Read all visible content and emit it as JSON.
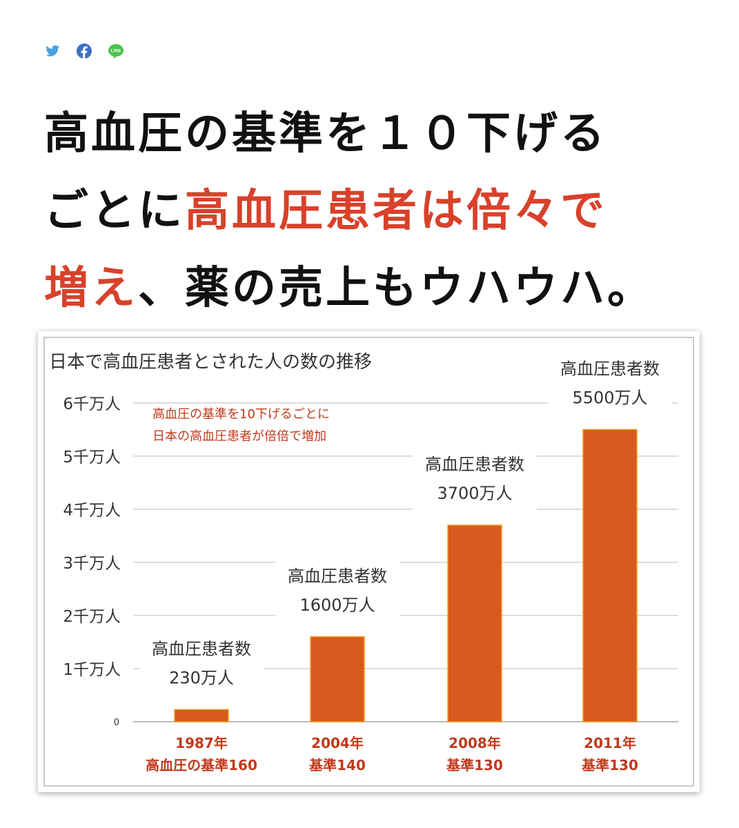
{
  "share": [
    {
      "name": "twitter-icon",
      "color": "#4a9fe0"
    },
    {
      "name": "facebook-icon",
      "color": "#3b6fc4"
    },
    {
      "name": "line-icon",
      "color": "#4cc24a",
      "label": "LINE"
    }
  ],
  "headline": {
    "line1": "高血圧の基準を１０下げる",
    "line2_black": "ごとに",
    "line2_red": "高血圧患者は倍々で",
    "line3_red": "増え",
    "line3_black": "、薬の売上もウハウハ。",
    "accent_color": "#d9412b"
  },
  "chart_data": {
    "type": "bar",
    "title": "日本で高血圧患者とされた人の数の推移",
    "annotation": [
      "高血圧の基準を10下げるごとに",
      "日本の高血圧患者が倍倍で増加"
    ],
    "categories": [
      [
        "1987年",
        "高血圧の基準160"
      ],
      [
        "2004年",
        "基準140"
      ],
      [
        "2008年",
        "基準130"
      ],
      [
        "2011年",
        "基準130"
      ]
    ],
    "values": [
      230,
      1600,
      3700,
      5500
    ],
    "unit": "万人",
    "bar_labels": [
      [
        "高血圧患者数",
        "230万人"
      ],
      [
        "高血圧患者数",
        "1600万人"
      ],
      [
        "高血圧患者数",
        "3700万人"
      ],
      [
        "高血圧患者数",
        "5500万人"
      ]
    ],
    "ylim": [
      0,
      6000
    ],
    "yticks": [
      {
        "value": 0,
        "label": "0"
      },
      {
        "value": 1000,
        "label": "1千万人"
      },
      {
        "value": 2000,
        "label": "2千万人"
      },
      {
        "value": 3000,
        "label": "3千万人"
      },
      {
        "value": 4000,
        "label": "4千万人"
      },
      {
        "value": 5000,
        "label": "5千万人"
      },
      {
        "value": 6000,
        "label": "6千万人"
      }
    ],
    "grid": true,
    "colors": {
      "bar": "#d95a1e",
      "bar_edge": "#f0a020",
      "category_text": "#c0391a",
      "annotation_text": "#c0391a",
      "grid": "#dddddd"
    }
  }
}
